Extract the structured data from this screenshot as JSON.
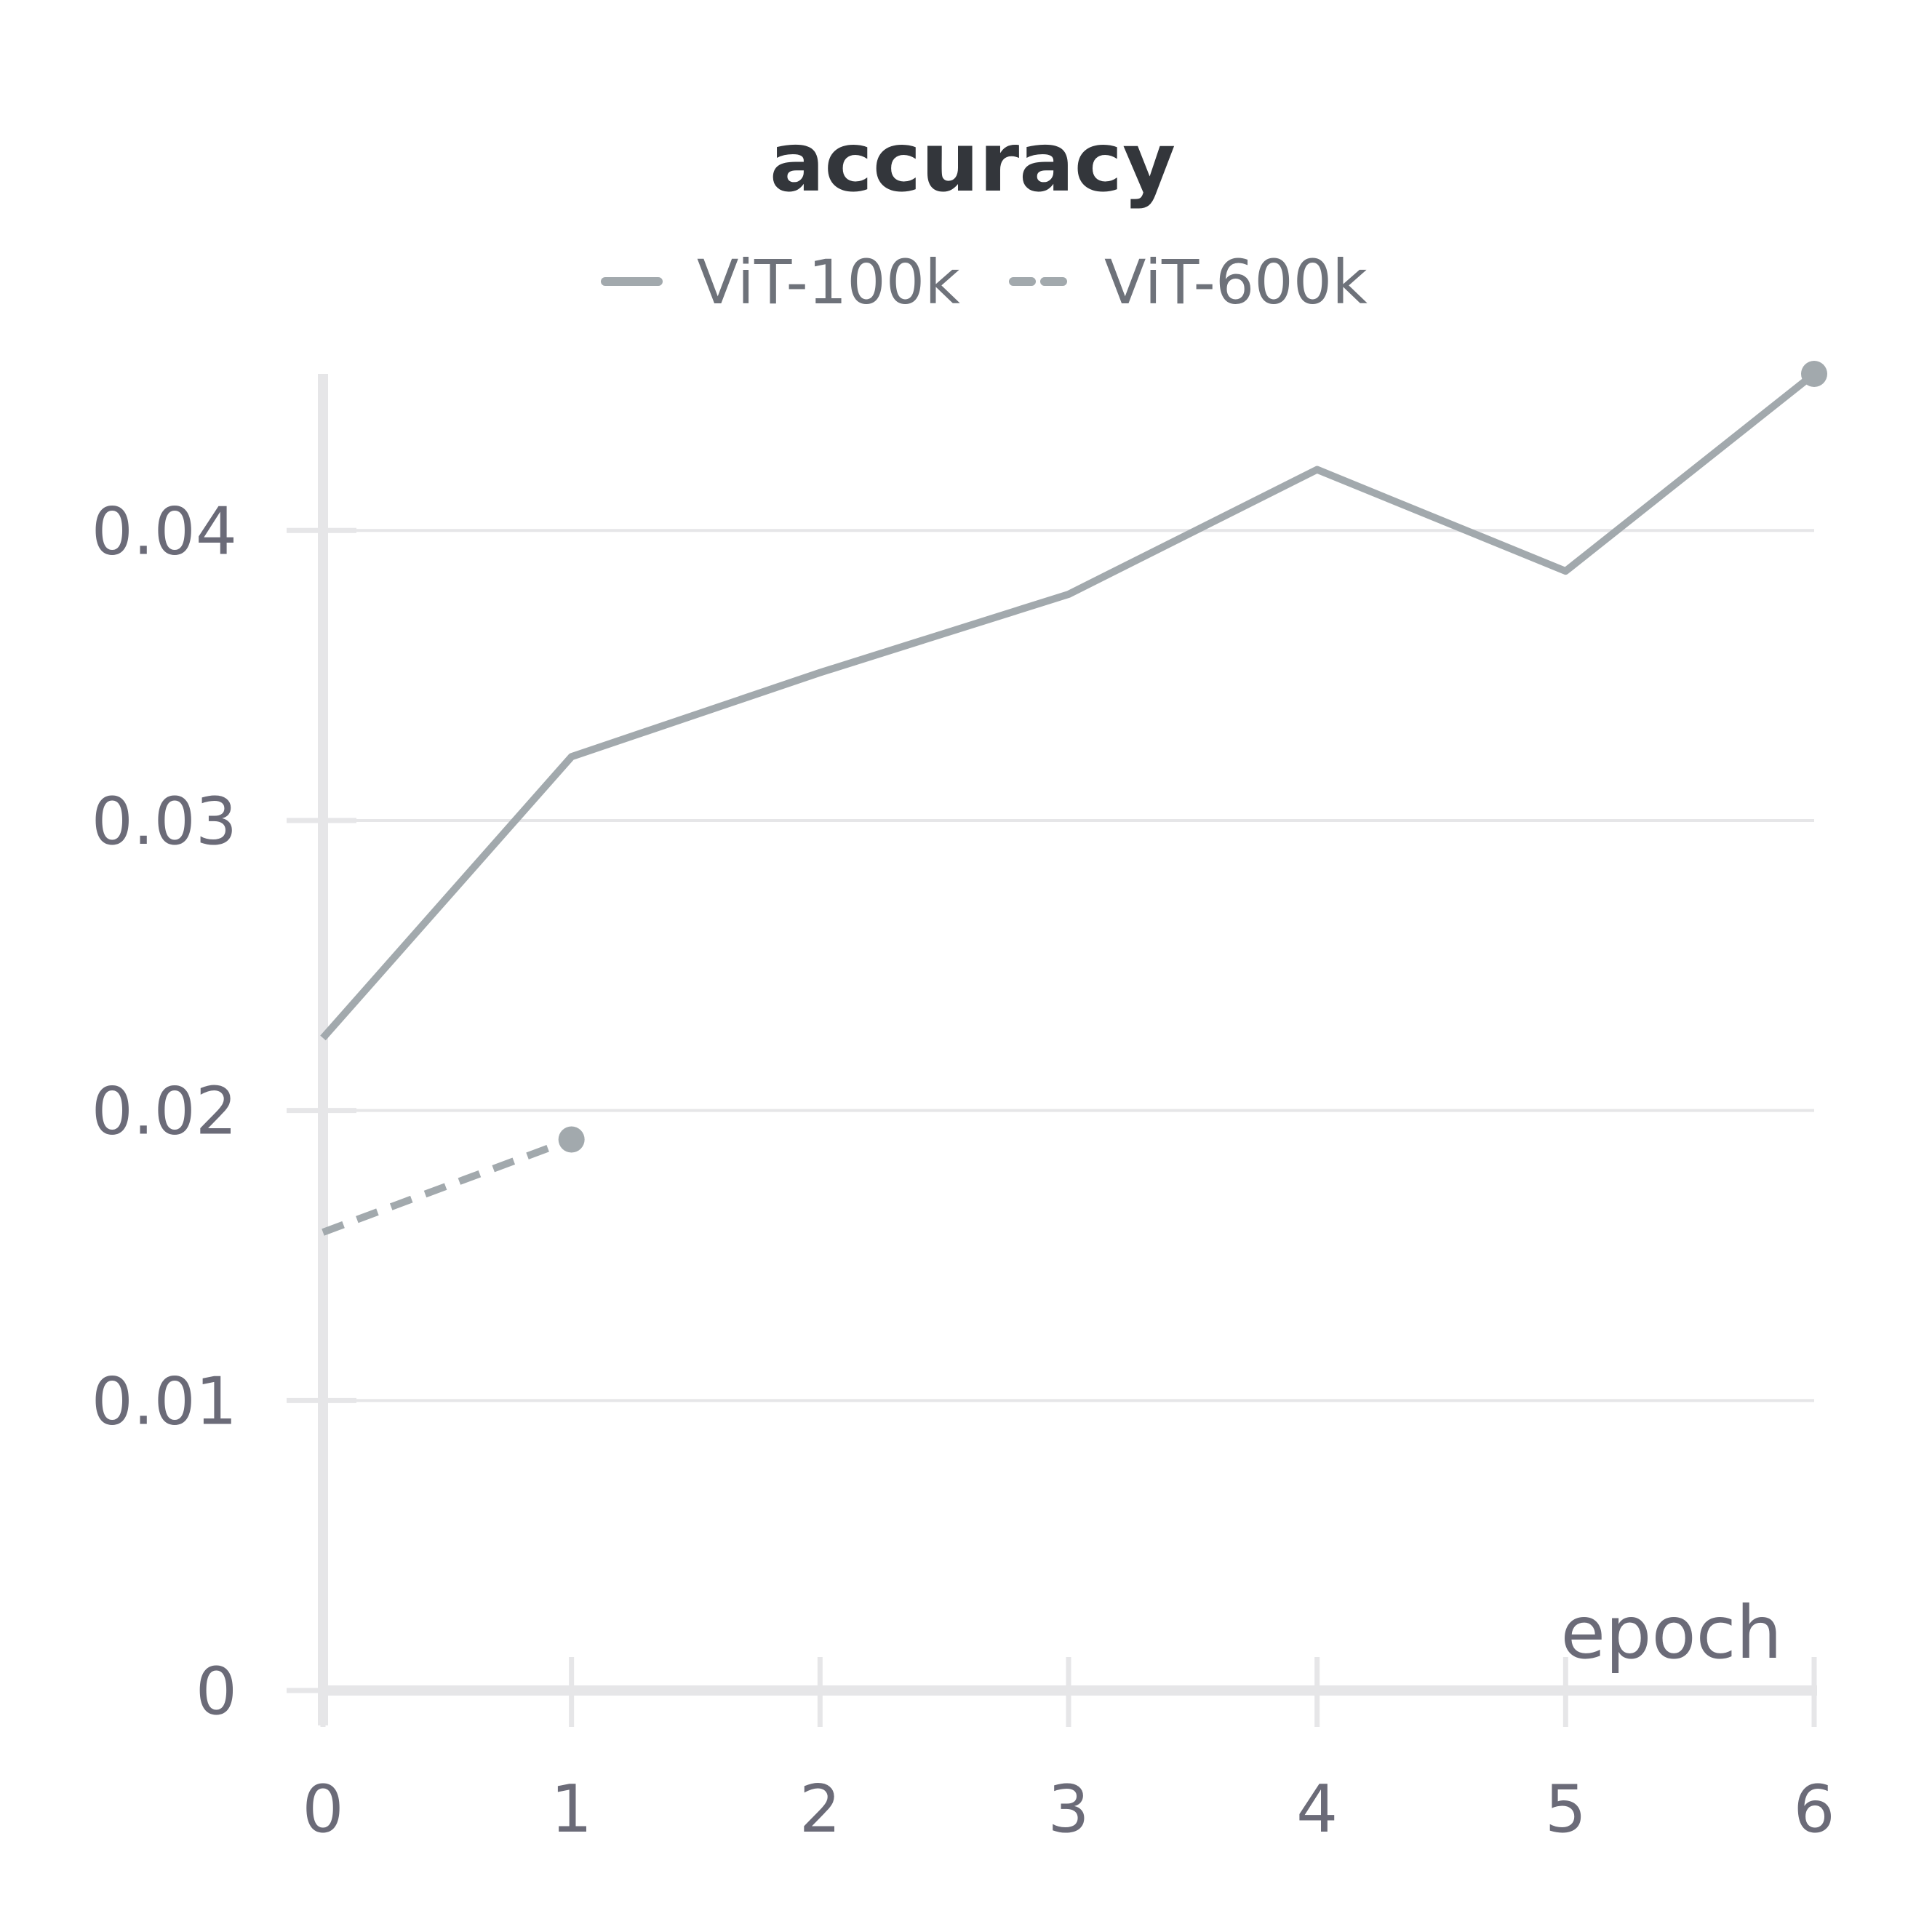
{
  "chart_data": {
    "type": "line",
    "title": "accuracy",
    "xlabel": "epoch",
    "ylabel": "",
    "xlim": [
      0,
      6
    ],
    "ylim": [
      0,
      0.0454
    ],
    "x_ticks": [
      "0",
      "1",
      "2",
      "3",
      "4",
      "5",
      "6"
    ],
    "y_ticks": [
      "0",
      "0.01",
      "0.02",
      "0.03",
      "0.04"
    ],
    "y_tick_values": [
      0,
      0.01,
      0.02,
      0.03,
      0.04
    ],
    "grid": true,
    "legend_position": "top-center",
    "series": [
      {
        "name": "ViT-100k",
        "style": "solid",
        "color": "#a2a9ad",
        "x": [
          0,
          1,
          2,
          3,
          4,
          5,
          6
        ],
        "y": [
          0.0225,
          0.0322,
          0.0351,
          0.0378,
          0.0421,
          0.0386,
          0.0454
        ]
      },
      {
        "name": "ViT-600k",
        "style": "dashed",
        "color": "#a2a9ad",
        "x": [
          0,
          1
        ],
        "y": [
          0.0158,
          0.019
        ]
      }
    ]
  }
}
